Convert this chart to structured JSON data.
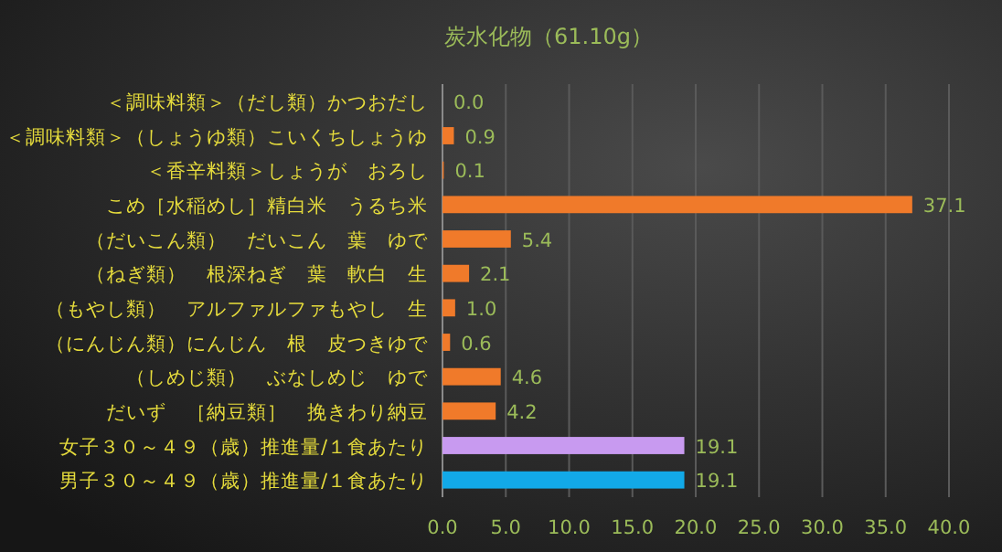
{
  "chart_data": {
    "type": "bar",
    "orientation": "horizontal",
    "title": "炭水化物（61.10g）",
    "categories": [
      "＜調味料類＞（だし類）かつおだし",
      "＜調味料類＞（しょうゆ類）こいくちしょうゆ",
      "＜香辛料類＞しょうが　おろし",
      "こめ［水稲めし］精白米　うるち米",
      "（だいこん類）　だいこん　葉　ゆで",
      "（ねぎ類）　根深ねぎ　葉　軟白　生",
      "（もやし類）　アルファルファもやし　生",
      "（にんじん類）にんじん　根　皮つきゆで",
      "（しめじ類）　ぶなしめじ　ゆで",
      "だいず　［納豆類］　挽きわり納豆",
      "女子３０～４９（歳）推進量/１食あたり",
      "男子３０～４９（歳）推進量/１食あたり"
    ],
    "values": [
      0.0,
      0.9,
      0.1,
      37.1,
      5.4,
      2.1,
      1.0,
      0.6,
      4.6,
      4.2,
      19.1,
      19.1
    ],
    "colors": [
      "#f07a2a",
      "#f07a2a",
      "#f07a2a",
      "#f07a2a",
      "#f07a2a",
      "#f07a2a",
      "#f07a2a",
      "#f07a2a",
      "#f07a2a",
      "#f07a2a",
      "#c89af0",
      "#12a9e8"
    ],
    "value_labels": [
      "0.0",
      "0.9",
      "0.1",
      "37.1",
      "5.4",
      "2.1",
      "1.0",
      "0.6",
      "4.6",
      "4.2",
      "19.1",
      "19.1"
    ],
    "xlim": [
      0,
      40
    ],
    "xticks": [
      {
        "value": 0,
        "label": "0.0"
      },
      {
        "value": 5,
        "label": "5.0"
      },
      {
        "value": 10,
        "label": "10.0"
      },
      {
        "value": 15,
        "label": "15.0"
      },
      {
        "value": 20,
        "label": "20.0"
      },
      {
        "value": 25,
        "label": "25.0"
      },
      {
        "value": 30,
        "label": "30.0"
      },
      {
        "value": 35,
        "label": "35.0"
      },
      {
        "value": 40,
        "label": "40.0"
      }
    ],
    "grid": "x"
  }
}
